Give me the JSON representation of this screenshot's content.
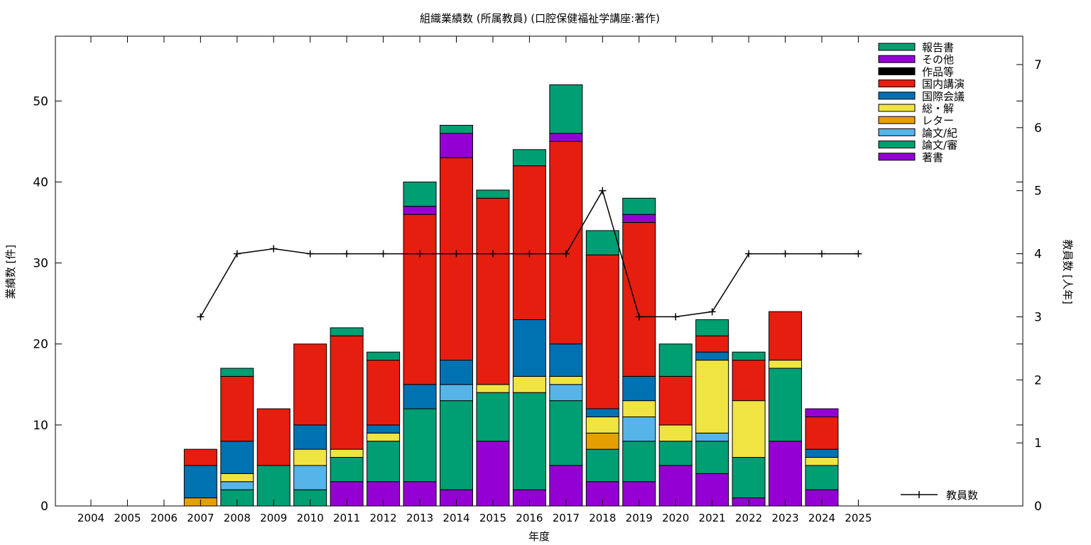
{
  "chart_data": {
    "type": "bar",
    "stacked": true,
    "title": "組織業績数 (所属教員) (口腔保健福祉学講座:著作)",
    "xlabel": "年度",
    "ylabel": "業績数 [件]",
    "y2label": "教員数 [人年]",
    "ylim": [
      0,
      58
    ],
    "y2lim": [
      0,
      7.45
    ],
    "yticks": [
      0,
      10,
      20,
      30,
      40,
      50
    ],
    "y2ticks": [
      0,
      1,
      2,
      3,
      4,
      5,
      6,
      7
    ],
    "grid": false,
    "legend_position": "top-right",
    "categories": [
      "2004",
      "2005",
      "2006",
      "2007",
      "2008",
      "2009",
      "2010",
      "2011",
      "2012",
      "2013",
      "2014",
      "2015",
      "2016",
      "2017",
      "2018",
      "2019",
      "2020",
      "2021",
      "2022",
      "2023",
      "2024",
      "2025"
    ],
    "series": [
      {
        "name": "著書",
        "color": "#9400d3",
        "values": [
          0,
          0,
          0,
          0,
          0,
          0,
          0,
          3,
          3,
          3,
          2,
          8,
          2,
          5,
          3,
          3,
          5,
          4,
          1,
          8,
          2,
          0
        ]
      },
      {
        "name": "論文/審",
        "color": "#009e73",
        "values": [
          0,
          0,
          0,
          0,
          2,
          5,
          2,
          3,
          5,
          9,
          11,
          6,
          12,
          8,
          4,
          5,
          3,
          4,
          5,
          9,
          3,
          0
        ]
      },
      {
        "name": "論文/紀",
        "color": "#56b4e9",
        "values": [
          0,
          0,
          0,
          0,
          1,
          0,
          3,
          0,
          0,
          0,
          2,
          0,
          0,
          2,
          0,
          3,
          0,
          1,
          0,
          0,
          0,
          0
        ]
      },
      {
        "name": "レター",
        "color": "#e69f00",
        "values": [
          0,
          0,
          0,
          1,
          0,
          0,
          0,
          0,
          0,
          0,
          0,
          0,
          0,
          0,
          2,
          0,
          0,
          0,
          0,
          0,
          0,
          0
        ]
      },
      {
        "name": "総・解",
        "color": "#f0e442",
        "values": [
          0,
          0,
          0,
          0,
          1,
          0,
          2,
          1,
          1,
          0,
          0,
          1,
          2,
          1,
          2,
          2,
          2,
          9,
          7,
          1,
          1,
          0
        ]
      },
      {
        "name": "国際会議",
        "color": "#0072b2",
        "values": [
          0,
          0,
          0,
          4,
          4,
          0,
          3,
          0,
          1,
          3,
          3,
          0,
          7,
          4,
          1,
          3,
          0,
          1,
          0,
          0,
          1,
          0
        ]
      },
      {
        "name": "国内講演",
        "color": "#e51e10",
        "values": [
          0,
          0,
          0,
          2,
          8,
          7,
          10,
          14,
          8,
          21,
          25,
          23,
          19,
          25,
          19,
          19,
          6,
          2,
          5,
          6,
          4,
          0
        ]
      },
      {
        "name": "作品等",
        "color": "#000000",
        "values": [
          0,
          0,
          0,
          0,
          0,
          0,
          0,
          0,
          0,
          0,
          0,
          0,
          0,
          0,
          0,
          0,
          0,
          0,
          0,
          0,
          0,
          0
        ]
      },
      {
        "name": "その他",
        "color": "#9400d3",
        "values": [
          0,
          0,
          0,
          0,
          0,
          0,
          0,
          0,
          0,
          1,
          3,
          0,
          0,
          1,
          0,
          1,
          0,
          0,
          0,
          0,
          1,
          0
        ]
      },
      {
        "name": "報告書",
        "color": "#009e73",
        "values": [
          0,
          0,
          0,
          0,
          1,
          0,
          0,
          1,
          1,
          3,
          1,
          1,
          2,
          6,
          3,
          2,
          4,
          2,
          1,
          0,
          0,
          0
        ]
      }
    ],
    "line_series": {
      "name": "教員数",
      "color": "#000000",
      "x_start": "2007",
      "values": [
        3,
        4,
        4.08,
        4,
        4,
        4,
        4,
        4,
        4,
        4,
        4,
        5,
        3,
        3,
        3.08,
        4,
        4,
        4,
        4
      ]
    }
  }
}
